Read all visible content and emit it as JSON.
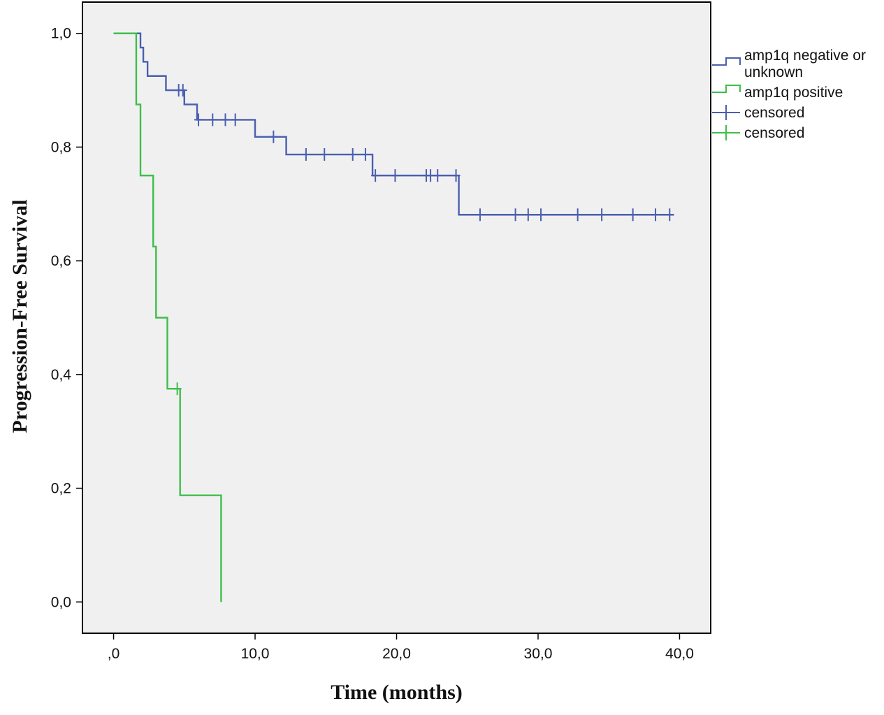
{
  "chart_data": {
    "type": "line",
    "subtype": "kaplan-meier-step",
    "title": "",
    "xlabel": "Time (months)",
    "ylabel": "Progression-Free Survival",
    "xlim": [
      -2.2,
      42.2
    ],
    "ylim": [
      -0.055,
      1.055
    ],
    "x_ticks": [
      0,
      10,
      20,
      30,
      40
    ],
    "x_tick_labels": [
      ",0",
      "10,0",
      "20,0",
      "30,0",
      "40,0"
    ],
    "y_ticks": [
      0,
      0.2,
      0.4,
      0.6,
      0.8,
      1.0
    ],
    "y_tick_labels": [
      "0,0",
      "0,2",
      "0,4",
      "0,6",
      "0,8",
      "1,0"
    ],
    "grid": false,
    "plot_background": "#f0f0f0",
    "legend_position": "right",
    "series": [
      {
        "name": "amp1q negative or unknown",
        "color": "#4a5fb0",
        "steps": [
          [
            0,
            1.0
          ],
          [
            1.9,
            0.975
          ],
          [
            2.1,
            0.95
          ],
          [
            2.4,
            0.925
          ],
          [
            3.7,
            0.9
          ],
          [
            5.0,
            0.875
          ],
          [
            5.9,
            0.848
          ],
          [
            10.0,
            0.818
          ],
          [
            12.2,
            0.787
          ],
          [
            18.3,
            0.75
          ],
          [
            24.4,
            0.681
          ],
          [
            39.6,
            0.681
          ]
        ],
        "censored": [
          [
            4.6,
            0.9
          ],
          [
            4.9,
            0.9
          ],
          [
            6.0,
            0.848
          ],
          [
            7.0,
            0.848
          ],
          [
            7.9,
            0.848
          ],
          [
            8.6,
            0.848
          ],
          [
            11.3,
            0.818
          ],
          [
            13.6,
            0.787
          ],
          [
            14.9,
            0.787
          ],
          [
            16.9,
            0.787
          ],
          [
            17.8,
            0.787
          ],
          [
            18.5,
            0.75
          ],
          [
            19.9,
            0.75
          ],
          [
            22.1,
            0.75
          ],
          [
            22.4,
            0.75
          ],
          [
            22.9,
            0.75
          ],
          [
            24.2,
            0.75
          ],
          [
            25.9,
            0.681
          ],
          [
            28.4,
            0.681
          ],
          [
            29.3,
            0.681
          ],
          [
            30.2,
            0.681
          ],
          [
            32.8,
            0.681
          ],
          [
            34.5,
            0.681
          ],
          [
            36.7,
            0.681
          ],
          [
            38.3,
            0.681
          ],
          [
            39.3,
            0.681
          ]
        ]
      },
      {
        "name": "amp1q positive",
        "color": "#3fbf4a",
        "steps": [
          [
            0,
            1.0
          ],
          [
            1.6,
            0.875
          ],
          [
            1.9,
            0.75
          ],
          [
            2.8,
            0.625
          ],
          [
            3.0,
            0.5
          ],
          [
            3.8,
            0.375
          ],
          [
            4.7,
            0.1875
          ],
          [
            7.6,
            0.0
          ]
        ],
        "censored": [
          [
            4.5,
            0.375
          ]
        ]
      }
    ],
    "legend": [
      {
        "label": "amp1q negative or unknown",
        "symbol": "step-line",
        "color": "#4a5fb0"
      },
      {
        "label": "amp1q positive",
        "symbol": "step-line",
        "color": "#3fbf4a"
      },
      {
        "label": "censored",
        "symbol": "plus-line",
        "color": "#4a5fb0"
      },
      {
        "label": "censored",
        "symbol": "plus-line",
        "color": "#3fbf4a"
      }
    ]
  }
}
